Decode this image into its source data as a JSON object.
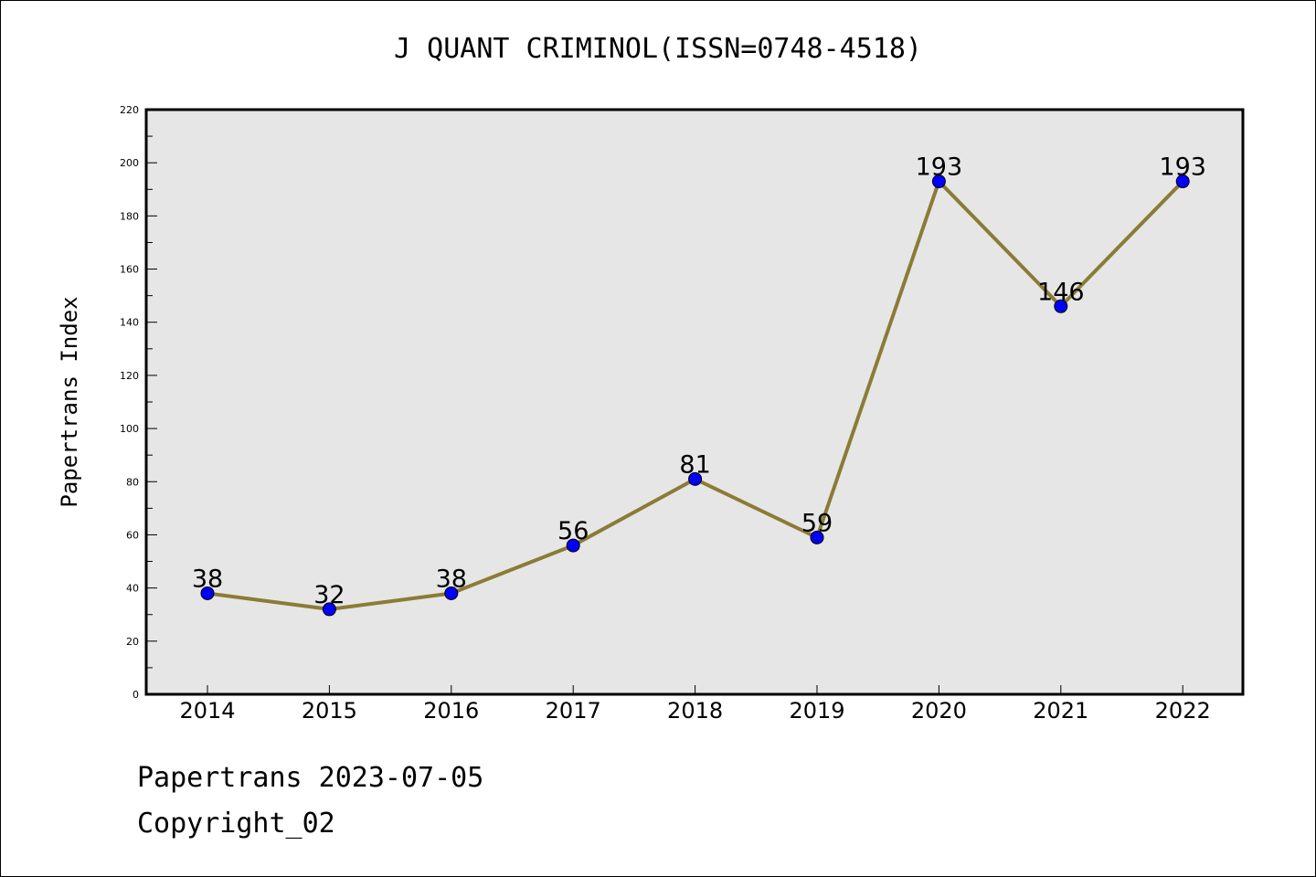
{
  "footer": {
    "line1": "Papertrans 2023-07-05",
    "line2": "Copyright_02"
  },
  "chart_data": {
    "type": "line",
    "title": "J QUANT CRIMINOL(ISSN=0748-4518)",
    "xlabel": "",
    "ylabel": "Papertrans Index",
    "categories": [
      "2014",
      "2015",
      "2016",
      "2017",
      "2018",
      "2019",
      "2020",
      "2021",
      "2022"
    ],
    "values": [
      38,
      32,
      38,
      56,
      81,
      59,
      193,
      146,
      193
    ],
    "data_labels": [
      "38",
      "32",
      "38",
      "56",
      "81",
      "59",
      "193",
      "146",
      "193"
    ],
    "ylim": [
      0,
      220
    ],
    "yticks": [
      0,
      20,
      40,
      60,
      80,
      100,
      120,
      140,
      160,
      180,
      200,
      220
    ],
    "grid": false,
    "colors": {
      "line": "#8B7B35",
      "marker": "#0000FF",
      "plot_background": "#E6E6E6"
    }
  }
}
